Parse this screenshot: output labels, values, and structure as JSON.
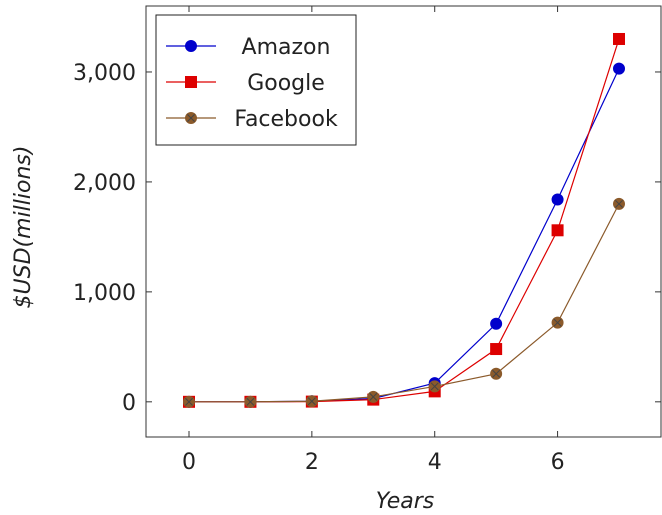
{
  "chart_data": {
    "type": "line",
    "xlabel": "Years",
    "ylabel": "$USD(millions)",
    "xlim": [
      -0.7,
      7.7
    ],
    "ylim": [
      -320,
      3600
    ],
    "xticks": [
      0,
      2,
      4,
      6
    ],
    "xtick_labels": [
      "0",
      "2",
      "4",
      "6"
    ],
    "yticks": [
      0,
      1000,
      2000,
      3000
    ],
    "ytick_labels": [
      "0",
      "1,000",
      "2,000",
      "3,000"
    ],
    "grid": false,
    "legend_position": "top-left",
    "series": [
      {
        "name": "Amazon",
        "color": "#0000cc",
        "marker": "circle",
        "x": [
          0,
          1,
          2,
          3,
          4,
          5,
          6,
          7
        ],
        "y": [
          0,
          0,
          5,
          30,
          170,
          710,
          1840,
          3030
        ]
      },
      {
        "name": "Google",
        "color": "#dd0000",
        "marker": "square",
        "x": [
          0,
          1,
          2,
          3,
          4,
          5,
          6,
          7
        ],
        "y": [
          0,
          0,
          2,
          20,
          95,
          480,
          1560,
          3300
        ]
      },
      {
        "name": "Facebook",
        "color": "#8b5a2b",
        "marker": "circle-x",
        "x": [
          0,
          1,
          2,
          3,
          4,
          5,
          6,
          7
        ],
        "y": [
          0,
          0,
          5,
          45,
          140,
          255,
          720,
          1800
        ]
      }
    ]
  }
}
